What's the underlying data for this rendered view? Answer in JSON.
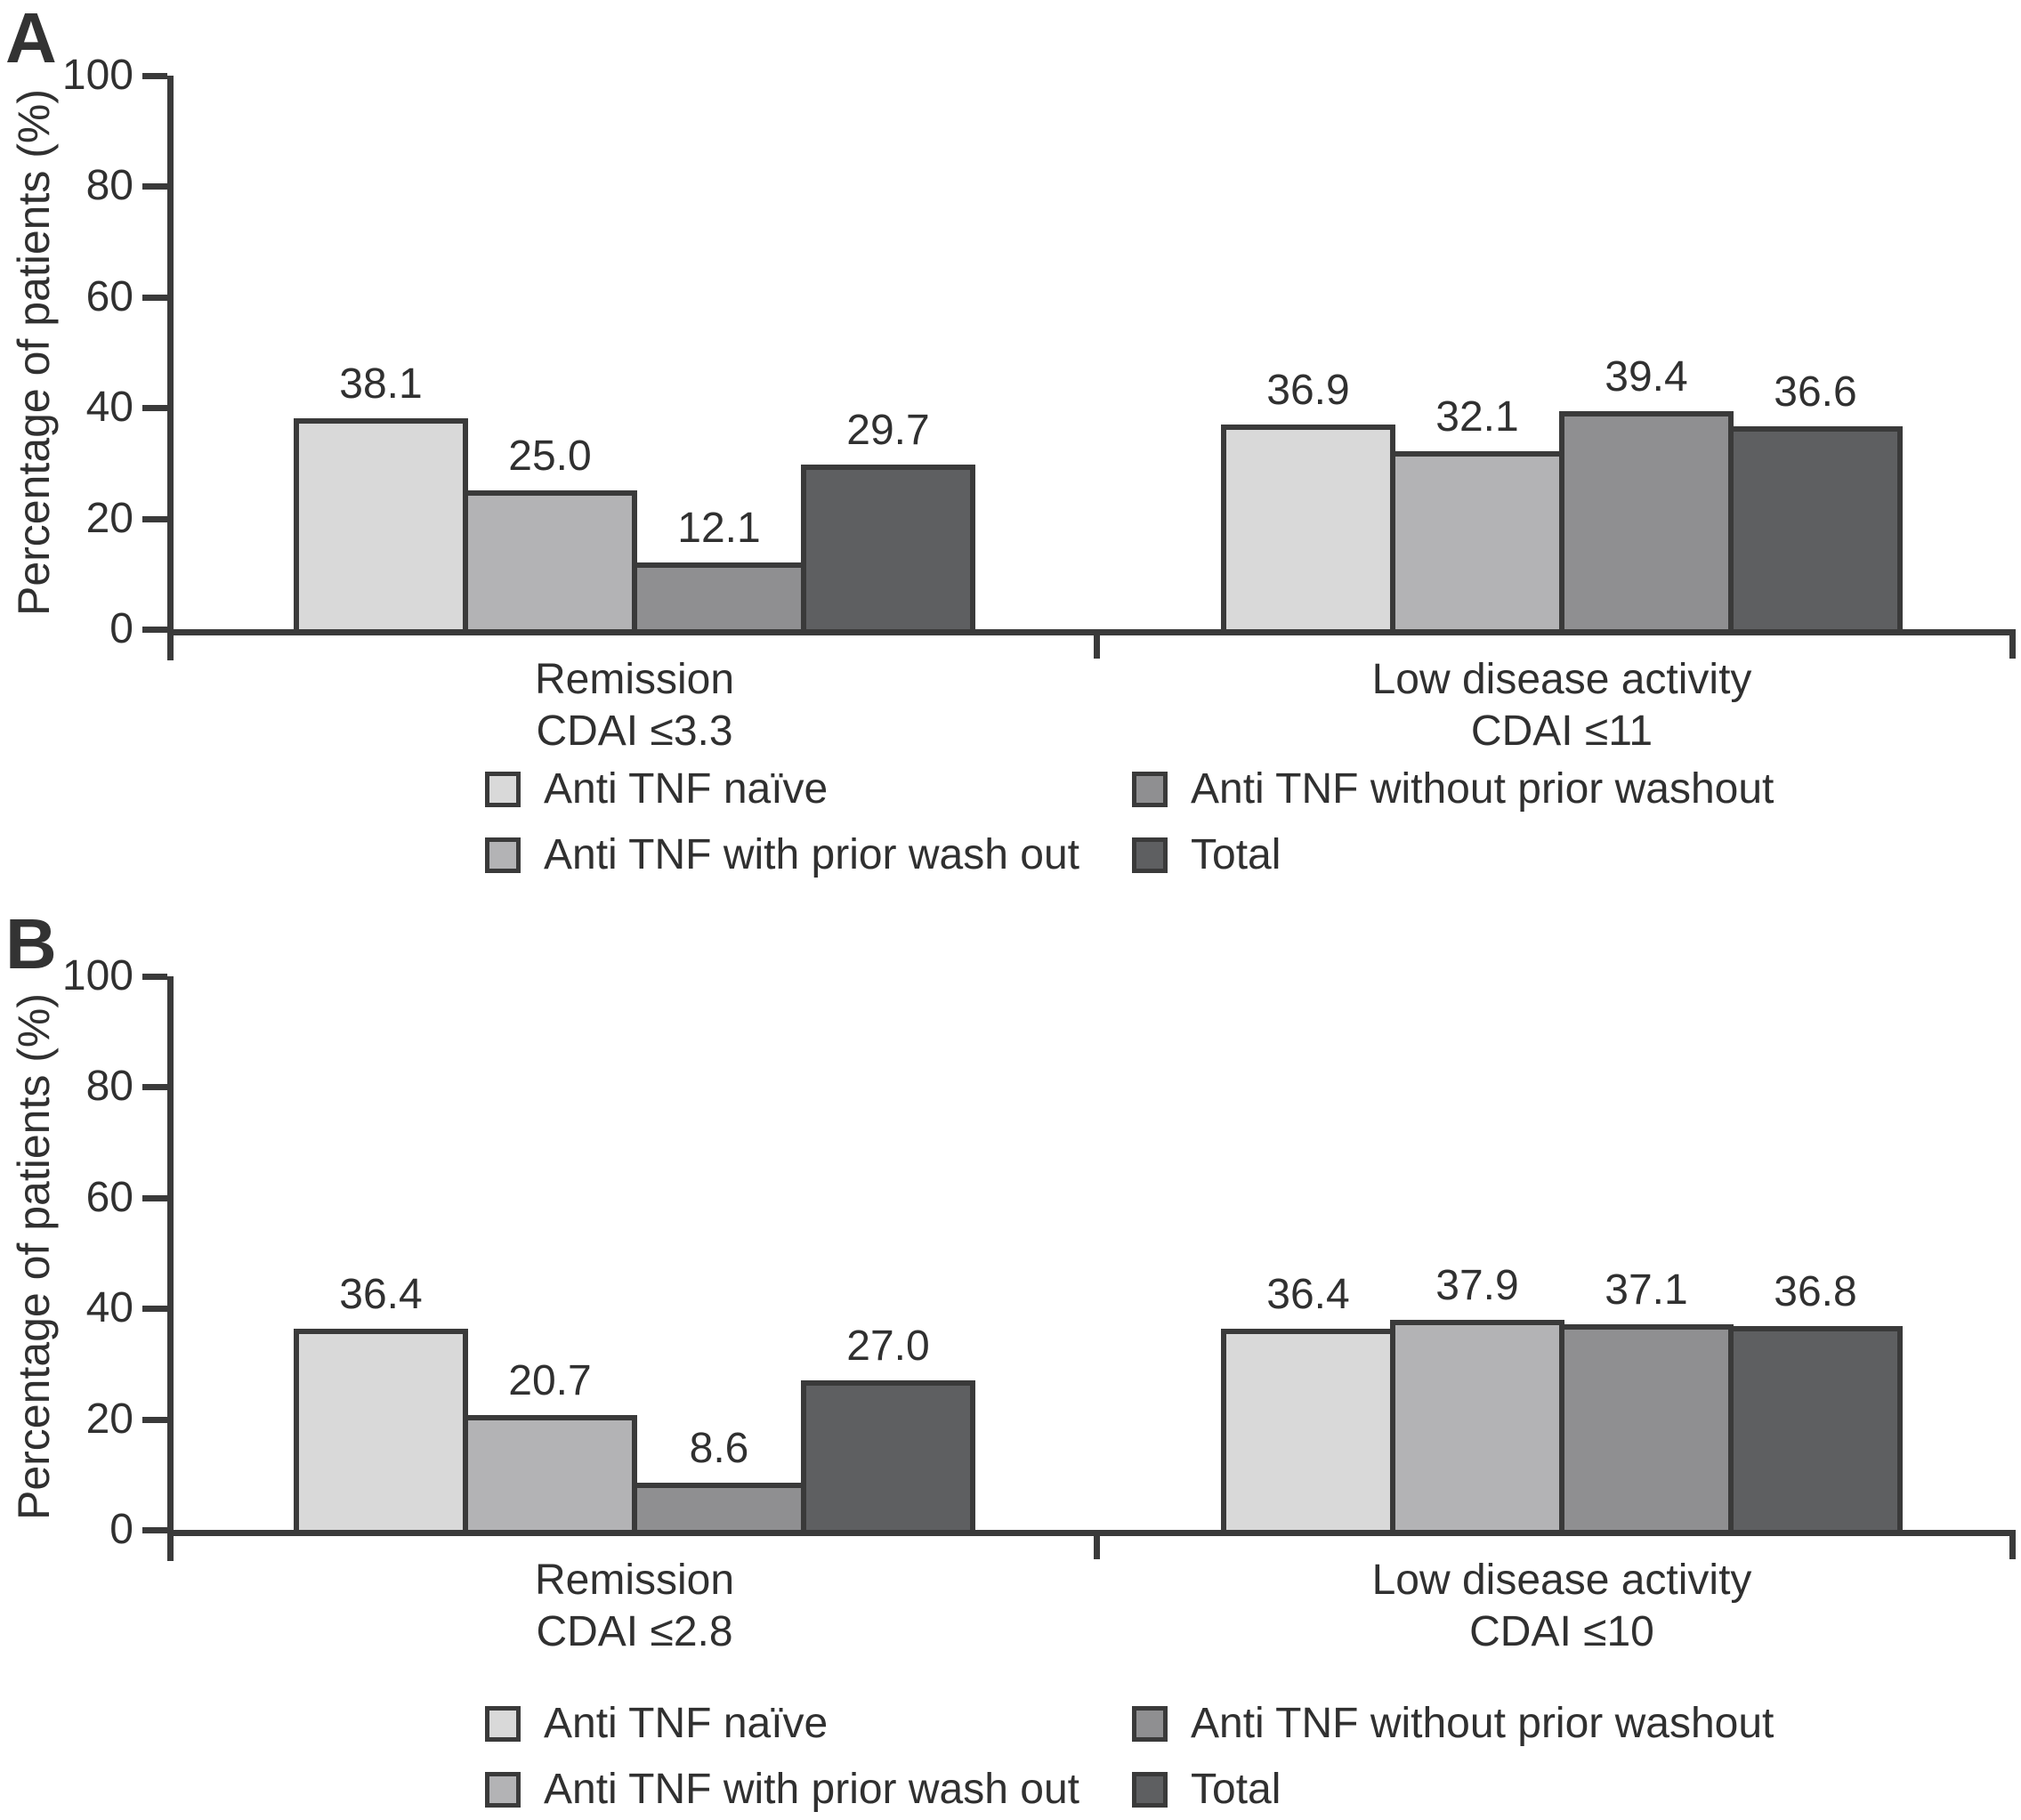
{
  "colors": {
    "background": "#ffffff",
    "axis": "#3a3a3a",
    "text": "#303030",
    "series_anti_tnf_naive": "#d9d9d9",
    "series_anti_tnf_with_prior_wash_out": "#b3b3b5",
    "series_anti_tnf_without_prior_washout": "#8f8f91",
    "series_total": "#5e5f61"
  },
  "chart_data": [
    {
      "type": "bar",
      "panel_label": "A",
      "ylabel": "Percentage of patients (%)",
      "xlabel": "",
      "ylim": [
        0,
        100
      ],
      "yticks": [
        0,
        20,
        40,
        60,
        80,
        100
      ],
      "grid": false,
      "legend_position": "below",
      "categories": [
        {
          "line1": "Remission",
          "line2": "CDAI ≤3.3"
        },
        {
          "line1": "Low disease activity",
          "line2": "CDAI ≤11"
        }
      ],
      "series": [
        {
          "name": "Anti TNF naïve",
          "color": "#d9d9d9",
          "values": [
            38.1,
            36.9
          ]
        },
        {
          "name": "Anti TNF with prior wash out",
          "color": "#b3b3b5",
          "values": [
            25.0,
            32.1
          ]
        },
        {
          "name": "Anti TNF without prior washout",
          "color": "#8f8f91",
          "values": [
            12.1,
            39.4
          ]
        },
        {
          "name": "Total",
          "color": "#5e5f61",
          "values": [
            29.7,
            36.6
          ]
        }
      ],
      "legend_rows": [
        [
          0,
          2
        ],
        [
          1,
          3
        ]
      ]
    },
    {
      "type": "bar",
      "panel_label": "B",
      "ylabel": "Percentage of patients (%)",
      "xlabel": "",
      "ylim": [
        0,
        100
      ],
      "yticks": [
        0,
        20,
        40,
        60,
        80,
        100
      ],
      "grid": false,
      "legend_position": "below",
      "categories": [
        {
          "line1": "Remission",
          "line2": "CDAI ≤2.8"
        },
        {
          "line1": "Low disease activity",
          "line2": "CDAI ≤10"
        }
      ],
      "series": [
        {
          "name": "Anti TNF naïve",
          "color": "#d9d9d9",
          "values": [
            36.4,
            36.4
          ]
        },
        {
          "name": "Anti TNF with prior wash out",
          "color": "#b3b3b5",
          "values": [
            20.7,
            37.9
          ]
        },
        {
          "name": "Anti TNF without prior washout",
          "color": "#8f8f91",
          "values": [
            8.6,
            37.1
          ]
        },
        {
          "name": "Total",
          "color": "#5e5f61",
          "values": [
            27.0,
            36.8
          ]
        }
      ],
      "legend_rows": [
        [
          0,
          2
        ],
        [
          1,
          3
        ]
      ]
    }
  ]
}
